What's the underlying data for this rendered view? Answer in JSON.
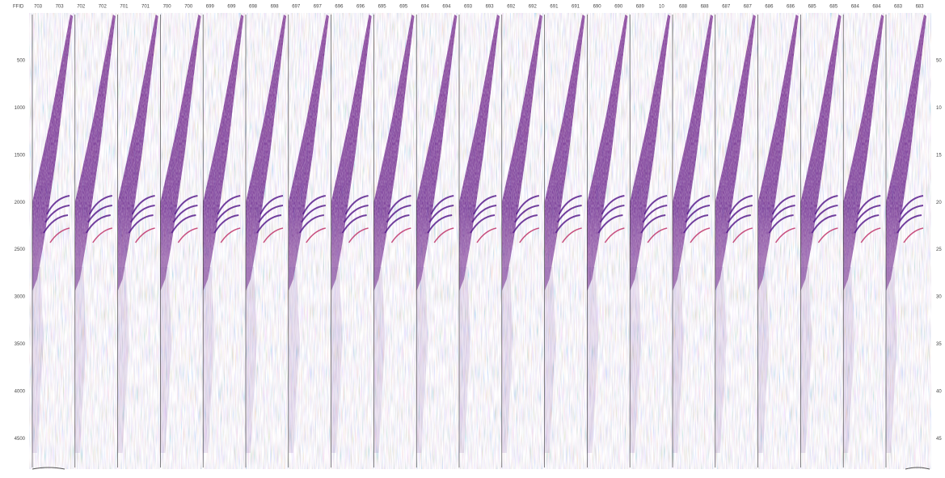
{
  "header": {
    "corner": "FFID",
    "labels": [
      "703",
      "703",
      "702",
      "702",
      "701",
      "701",
      "700",
      "700",
      "699",
      "699",
      "698",
      "698",
      "697",
      "697",
      "696",
      "696",
      "695",
      "695",
      "694",
      "694",
      "693",
      "693",
      "692",
      "692",
      "691",
      "691",
      "690",
      "690",
      "689",
      "10",
      "688",
      "688",
      "687",
      "687",
      "686",
      "686",
      "685",
      "685",
      "684",
      "684",
      "683",
      "683"
    ]
  },
  "left_axis": {
    "labels": [
      "500",
      "1000",
      "1500",
      "2000",
      "2500",
      "3000",
      "3500",
      "4000",
      "4500"
    ]
  },
  "right_axis": {
    "labels": [
      "50",
      "10",
      "15",
      "20",
      "25",
      "30",
      "35",
      "40",
      "45"
    ]
  }
}
